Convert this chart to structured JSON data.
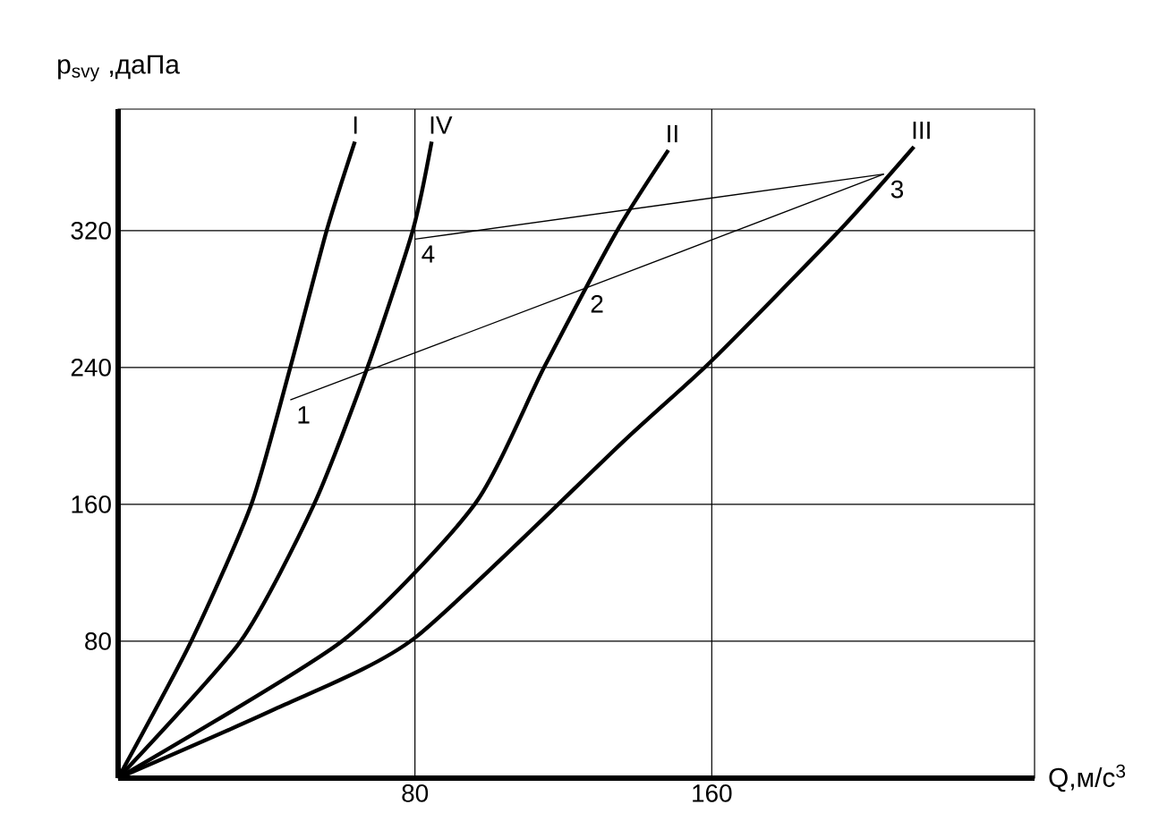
{
  "chart_data": {
    "type": "line",
    "xlabel": "Q,м/с$^{3}$",
    "ylabel": "p$_{svy}$ ,даПа",
    "xlim": [
      0,
      247
    ],
    "ylim": [
      0,
      391
    ],
    "xticks": [
      80,
      160
    ],
    "yticks": [
      80,
      160,
      240,
      320
    ],
    "grid": true,
    "marker": "none",
    "line_style": "solid",
    "series": [
      {
        "name": "I",
        "color": "#000000",
        "x": [
          0,
          19.7,
          35.9,
          46.4,
          56.2,
          63.8
        ],
        "values": [
          0,
          80,
          160,
          240,
          320,
          372
        ]
      },
      {
        "name": "IV",
        "color": "#000000",
        "x": [
          0,
          33.0,
          52.8,
          67.2,
          79.4,
          84.5
        ],
        "values": [
          0,
          80,
          160,
          240,
          320,
          372
        ]
      },
      {
        "name": "II",
        "color": "#000000",
        "x": [
          0,
          60.3,
          96.1,
          114.8,
          134.5,
          148.3
        ],
        "values": [
          0,
          80,
          160,
          240,
          320,
          367
        ]
      },
      {
        "name": "III",
        "color": "#000000",
        "x": [
          0,
          42.9,
          80,
          136.3,
          160,
          194.4,
          214.5
        ],
        "values": [
          0,
          41,
          82,
          197,
          244,
          320,
          369
        ]
      },
      {
        "color": "#000000",
        "x": [
          46.4,
          125.5,
          206.4
        ],
        "values": [
          221,
          286,
          353
        ]
      },
      {
        "color": "#000000",
        "x": [
          80,
          206.4
        ],
        "values": [
          315,
          353
        ]
      }
    ],
    "annotations": [
      {
        "text": "1",
        "x": 46.4,
        "y": 221
      },
      {
        "text": "2",
        "x": 125.5,
        "y": 286
      },
      {
        "text": "3",
        "x": 206.4,
        "y": 353
      },
      {
        "text": "4",
        "x": 80,
        "y": 315
      }
    ]
  }
}
